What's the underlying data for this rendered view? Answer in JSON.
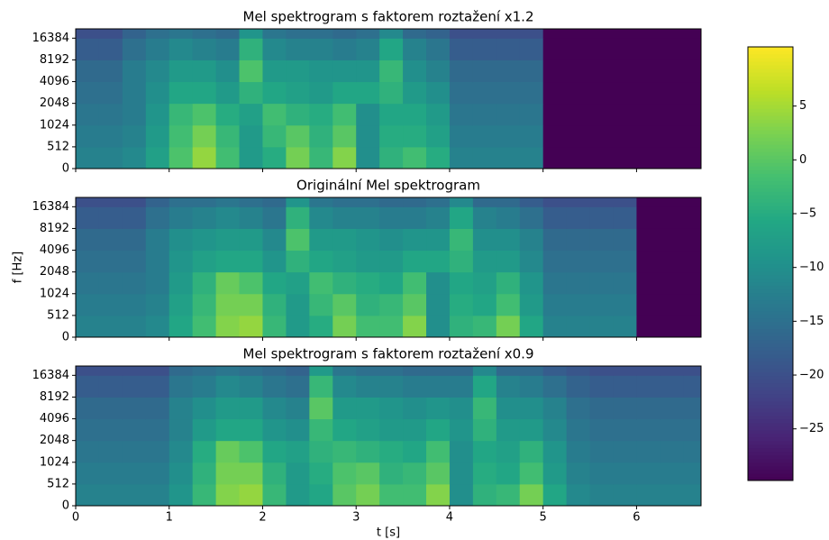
{
  "chart_data": [
    {
      "type": "heatmap",
      "title": "Mel spektrogram s faktorem roztažení x1.2",
      "xlim": [
        0,
        6.69
      ],
      "ylim": [
        0,
        22050
      ],
      "yscale": "symlog",
      "ylinthresh": 512,
      "xticks": [
        0,
        1,
        2,
        3,
        4,
        5,
        6
      ],
      "show_xtick_labels": false,
      "yticks": [
        0,
        512,
        1024,
        2048,
        4096,
        8192,
        16384
      ],
      "x_bins": [
        0,
        0.25,
        0.5,
        0.75,
        1,
        1.25,
        1.5,
        1.75,
        2,
        2.25,
        2.5,
        2.75,
        3,
        3.25,
        3.5,
        3.75,
        4,
        4.25,
        4.5,
        4.75,
        5,
        6.69
      ],
      "y_bins": [
        0,
        512,
        1024,
        2048,
        4096,
        8192,
        16384,
        22050
      ],
      "values": [
        [
          -12,
          -12,
          -11,
          -7,
          -1,
          4,
          -2,
          -8,
          -5,
          2,
          -3,
          3,
          -10,
          -4,
          -2,
          -5,
          -12,
          -12,
          -12,
          -12,
          -29.8
        ],
        [
          -13,
          -13,
          -12,
          -8,
          -2,
          2,
          -3,
          -8,
          -3,
          0,
          -4,
          0,
          -10,
          -5,
          -5,
          -7,
          -13,
          -13,
          -13,
          -13,
          -29.8
        ],
        [
          -14,
          -14,
          -13,
          -9,
          -3,
          -1,
          -5,
          -7,
          -2,
          -4,
          -5,
          -2,
          -10,
          -6,
          -6,
          -8,
          -14,
          -14,
          -14,
          -14,
          -29.8
        ],
        [
          -15,
          -15,
          -13,
          -10,
          -6,
          -6,
          -8,
          -4,
          -6,
          -7,
          -8,
          -6,
          -6,
          -4,
          -8,
          -10,
          -15,
          -15,
          -15,
          -15,
          -29.8
        ],
        [
          -16,
          -16,
          -13,
          -11,
          -8,
          -8,
          -10,
          -1,
          -8,
          -8,
          -9,
          -9,
          -9,
          -3,
          -10,
          -12,
          -16,
          -16,
          -16,
          -16,
          -29.8
        ],
        [
          -18,
          -18,
          -15,
          -13,
          -11,
          -12,
          -13,
          -4,
          -11,
          -12,
          -12,
          -13,
          -12,
          -6,
          -12,
          -14,
          -18,
          -18,
          -18,
          -18,
          -29.8
        ],
        [
          -20,
          -20,
          -17,
          -15,
          -14,
          -15,
          -16,
          -9,
          -14,
          -15,
          -15,
          -16,
          -15,
          -11,
          -16,
          -17,
          -20,
          -20,
          -20,
          -20,
          -29.8
        ]
      ]
    },
    {
      "type": "heatmap",
      "title": "Originální Mel spektrogram",
      "ylabel": "f [Hz]",
      "xlim": [
        0,
        6.69
      ],
      "ylim": [
        0,
        22050
      ],
      "yscale": "symlog",
      "ylinthresh": 512,
      "xticks": [
        0,
        1,
        2,
        3,
        4,
        5,
        6
      ],
      "show_xtick_labels": false,
      "yticks": [
        0,
        512,
        1024,
        2048,
        4096,
        8192,
        16384
      ],
      "x_bins": [
        0,
        0.25,
        0.5,
        0.75,
        1,
        1.25,
        1.5,
        1.75,
        2,
        2.25,
        2.5,
        2.75,
        3,
        3.25,
        3.5,
        3.75,
        4,
        4.25,
        4.5,
        4.75,
        5,
        5.25,
        5.5,
        5.75,
        6,
        6.69
      ],
      "y_bins": [
        0,
        512,
        1024,
        2048,
        4096,
        8192,
        16384,
        22050
      ],
      "values": [
        [
          -12,
          -12,
          -12,
          -11,
          -6,
          -2,
          3,
          4,
          -3,
          -8,
          -5,
          2,
          -2,
          -2,
          3,
          -10,
          -4,
          -3,
          2,
          -6,
          -12,
          -12,
          -12,
          -12,
          -29.8
        ],
        [
          -13,
          -13,
          -13,
          -12,
          -7,
          -3,
          2,
          2,
          -4,
          -8,
          -3,
          0,
          -4,
          -3,
          0,
          -10,
          -5,
          -6,
          -2,
          -8,
          -13,
          -13,
          -13,
          -13,
          -29.8
        ],
        [
          -14,
          -14,
          -14,
          -13,
          -8,
          -4,
          1,
          -1,
          -6,
          -7,
          -2,
          -4,
          -5,
          -6,
          -2,
          -10,
          -6,
          -7,
          -4,
          -9,
          -14,
          -14,
          -14,
          -14,
          -29.8
        ],
        [
          -15,
          -15,
          -15,
          -13,
          -9,
          -7,
          -6,
          -6,
          -9,
          -4,
          -6,
          -7,
          -8,
          -8,
          -6,
          -6,
          -4,
          -8,
          -8,
          -11,
          -15,
          -15,
          -15,
          -15,
          -29.8
        ],
        [
          -16,
          -16,
          -16,
          -13,
          -10,
          -9,
          -8,
          -8,
          -11,
          -1,
          -8,
          -8,
          -9,
          -10,
          -9,
          -9,
          -3,
          -10,
          -10,
          -12,
          -16,
          -16,
          -16,
          -16,
          -29.8
        ],
        [
          -18,
          -18,
          -18,
          -15,
          -13,
          -12,
          -11,
          -12,
          -14,
          -4,
          -11,
          -12,
          -12,
          -13,
          -13,
          -12,
          -6,
          -12,
          -13,
          -15,
          -18,
          -18,
          -18,
          -18,
          -29.8
        ],
        [
          -20,
          -20,
          -20,
          -17,
          -15,
          -15,
          -14,
          -15,
          -16,
          -9,
          -14,
          -15,
          -15,
          -16,
          -16,
          -15,
          -11,
          -16,
          -16,
          -18,
          -20,
          -20,
          -20,
          -20,
          -29.8
        ]
      ]
    },
    {
      "type": "heatmap",
      "title": "Mel spektrogram s faktorem roztažení x0.9",
      "xlabel": "t [s]",
      "xlim": [
        0,
        6.69
      ],
      "ylim": [
        0,
        22050
      ],
      "yscale": "symlog",
      "ylinthresh": 512,
      "xticks": [
        0,
        1,
        2,
        3,
        4,
        5,
        6
      ],
      "show_xtick_labels": true,
      "yticks": [
        0,
        512,
        1024,
        2048,
        4096,
        8192,
        16384
      ],
      "x_bins": [
        0,
        0.25,
        0.5,
        0.75,
        1,
        1.25,
        1.5,
        1.75,
        2,
        2.25,
        2.5,
        2.75,
        3,
        3.25,
        3.5,
        3.75,
        4,
        4.25,
        4.5,
        4.75,
        5,
        5.25,
        5.5,
        5.75,
        6,
        6.25,
        6.5,
        6.69
      ],
      "y_bins": [
        0,
        512,
        1024,
        2048,
        4096,
        8192,
        16384,
        22050
      ],
      "values": [
        [
          -12,
          -12,
          -12,
          -12,
          -9,
          -3,
          3,
          4,
          -3,
          -8,
          -6,
          0,
          2,
          -2,
          -2,
          3,
          -10,
          -4,
          -3,
          2,
          -6,
          -11,
          -12,
          -12,
          -12,
          -12,
          -12
        ],
        [
          -13,
          -13,
          -13,
          -13,
          -10,
          -4,
          2,
          2,
          -4,
          -8,
          -5,
          -1,
          0,
          -4,
          -3,
          0,
          -10,
          -5,
          -6,
          -2,
          -8,
          -12,
          -13,
          -13,
          -13,
          -13,
          -13
        ],
        [
          -14,
          -14,
          -14,
          -14,
          -11,
          -5,
          1,
          -1,
          -6,
          -7,
          -4,
          -3,
          -4,
          -5,
          -6,
          -2,
          -10,
          -6,
          -7,
          -4,
          -9,
          -13,
          -14,
          -14,
          -14,
          -14,
          -14
        ],
        [
          -15,
          -15,
          -15,
          -15,
          -12,
          -8,
          -6,
          -6,
          -9,
          -10,
          -3,
          -6,
          -7,
          -8,
          -8,
          -6,
          -9,
          -4,
          -8,
          -8,
          -11,
          -14,
          -15,
          -15,
          -15,
          -15,
          -15
        ],
        [
          -16,
          -16,
          -16,
          -16,
          -12,
          -10,
          -8,
          -8,
          -11,
          -12,
          0,
          -8,
          -8,
          -9,
          -10,
          -9,
          -10,
          -3,
          -10,
          -10,
          -12,
          -15,
          -16,
          -16,
          -16,
          -16,
          -16
        ],
        [
          -18,
          -18,
          -18,
          -18,
          -14,
          -13,
          -11,
          -12,
          -14,
          -15,
          -3,
          -11,
          -12,
          -12,
          -13,
          -13,
          -13,
          -6,
          -12,
          -13,
          -15,
          -17,
          -18,
          -18,
          -18,
          -18,
          -18
        ],
        [
          -20,
          -20,
          -20,
          -20,
          -16,
          -15,
          -14,
          -15,
          -16,
          -17,
          -8,
          -14,
          -15,
          -15,
          -16,
          -16,
          -16,
          -11,
          -16,
          -16,
          -18,
          -19,
          -20,
          -20,
          -20,
          -20,
          -20
        ]
      ]
    }
  ],
  "colorbar": {
    "colormap": "viridis",
    "lim": [
      -29.8,
      10.5
    ],
    "ticks": [
      {
        "value": -25,
        "label": "−25"
      },
      {
        "value": -20,
        "label": "−20"
      },
      {
        "value": -15,
        "label": "−15"
      },
      {
        "value": -10,
        "label": "−10"
      },
      {
        "value": -5,
        "label": "−5"
      },
      0,
      5
    ]
  }
}
